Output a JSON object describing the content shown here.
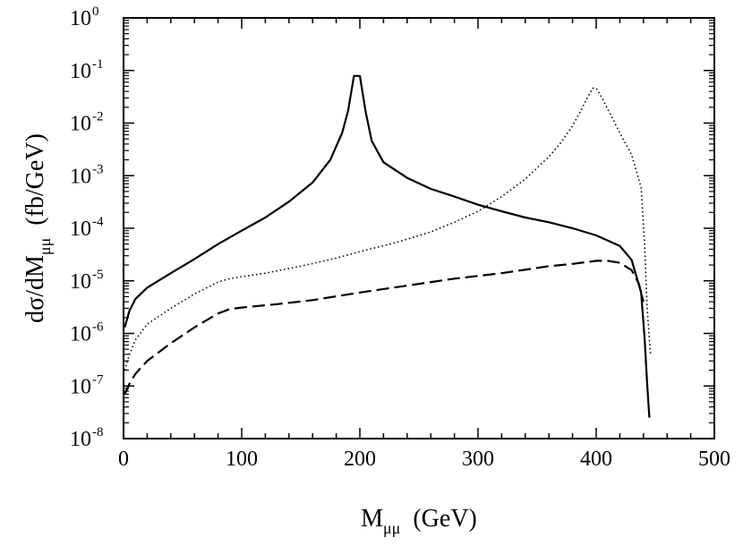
{
  "chart_data": {
    "type": "line",
    "title": "",
    "xlabel": {
      "main": "M",
      "sub": "μμ",
      "unit": "(GeV)"
    },
    "ylabel": {
      "main": "dσ/dM",
      "sub": "μμ",
      "unit": "(fb/GeV)"
    },
    "xscale": "linear",
    "yscale": "log",
    "xlim": [
      0,
      500
    ],
    "ylim": [
      1e-08,
      1
    ],
    "xticks": [
      0,
      100,
      200,
      300,
      400,
      500
    ],
    "xtick_labels": [
      "0",
      "100",
      "200",
      "300",
      "400",
      "500"
    ],
    "yticks": [
      -8,
      -7,
      -6,
      -5,
      -4,
      -3,
      -2,
      -1,
      0
    ],
    "ytick_labels": [
      {
        "base": "10",
        "exp": "-8"
      },
      {
        "base": "10",
        "exp": "-7"
      },
      {
        "base": "10",
        "exp": "-6"
      },
      {
        "base": "10",
        "exp": "-5"
      },
      {
        "base": "10",
        "exp": "-4"
      },
      {
        "base": "10",
        "exp": "-3"
      },
      {
        "base": "10",
        "exp": "-2"
      },
      {
        "base": "10",
        "exp": "-1"
      },
      {
        "base": "10",
        "exp": "0"
      }
    ],
    "series": [
      {
        "name": "solid",
        "style": "solid",
        "x": [
          1,
          5,
          10,
          20,
          40,
          60,
          80,
          100,
          120,
          140,
          160,
          175,
          185,
          190,
          195,
          200,
          205,
          210,
          220,
          240,
          260,
          280,
          300,
          320,
          340,
          360,
          380,
          400,
          420,
          430,
          438,
          441,
          443,
          445
        ],
        "y": [
          1.3e-06,
          2.7e-06,
          4.5e-06,
          7.4e-06,
          1.4e-05,
          2.6e-05,
          5e-05,
          9e-05,
          0.00016,
          0.00032,
          0.00074,
          0.002,
          0.0065,
          0.017,
          0.079,
          0.079,
          0.016,
          0.0046,
          0.0018,
          0.00091,
          0.00056,
          0.0004,
          0.00028,
          0.00021,
          0.00016,
          0.00013,
          0.0001,
          7.3e-05,
          4.6e-05,
          2.5e-05,
          6e-06,
          8e-07,
          1.2e-07,
          2.5e-08
        ]
      },
      {
        "name": "dotted",
        "style": "dotted",
        "x": [
          1,
          5,
          10,
          20,
          40,
          60,
          80,
          90,
          100,
          120,
          150,
          180,
          200,
          230,
          260,
          280,
          300,
          320,
          340,
          360,
          370,
          380,
          388,
          393,
          397,
          400,
          405,
          410,
          420,
          430,
          438,
          441,
          443,
          446
        ],
        "y": [
          2e-07,
          4e-07,
          7.5e-07,
          1.5e-06,
          3e-06,
          5.6e-06,
          9.5e-06,
          1.1e-05,
          1.2e-05,
          1.4e-05,
          1.9e-05,
          2.7e-05,
          3.6e-05,
          5.3e-05,
          8.5e-05,
          0.00013,
          0.00021,
          0.0004,
          0.00086,
          0.0023,
          0.0042,
          0.0089,
          0.019,
          0.032,
          0.046,
          0.046,
          0.03,
          0.018,
          0.0065,
          0.0025,
          0.0006,
          5e-05,
          3.2e-06,
          4e-07
        ]
      },
      {
        "name": "dashed",
        "style": "dashed",
        "x": [
          1,
          5,
          10,
          20,
          40,
          60,
          80,
          90,
          100,
          130,
          160,
          200,
          240,
          280,
          320,
          360,
          380,
          400,
          410,
          420,
          430,
          436,
          440
        ],
        "y": [
          7e-08,
          1.1e-07,
          1.7e-07,
          3e-07,
          6.5e-07,
          1.3e-06,
          2.4e-06,
          2.9e-06,
          3.1e-06,
          3.6e-06,
          4.3e-06,
          6e-06,
          8.1e-06,
          1.1e-05,
          1.4e-05,
          1.9e-05,
          2.1e-05,
          2.4e-05,
          2.4e-05,
          2.2e-05,
          1.6e-05,
          9e-06,
          4e-06
        ]
      }
    ]
  }
}
